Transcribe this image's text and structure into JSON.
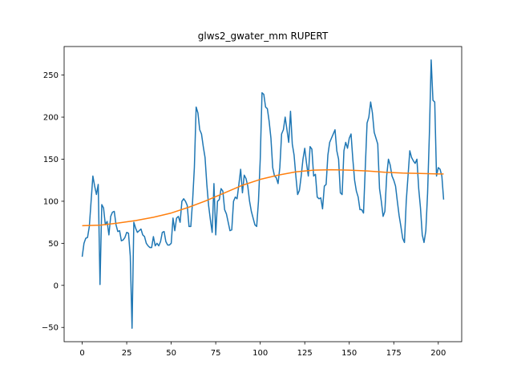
{
  "chart_data": {
    "type": "line",
    "title": "glws2_gwater_mm RUPERT",
    "xlim": [
      -10.15,
      213.15
    ],
    "ylim": [
      -66.95,
      283.95
    ],
    "xticks": [
      0,
      25,
      50,
      75,
      100,
      125,
      150,
      175,
      200
    ],
    "yticks": [
      {
        "value": -50,
        "label": "−50"
      },
      0,
      50,
      100,
      150,
      200,
      250
    ],
    "grid": false,
    "series": [
      {
        "color": "#1f77b4",
        "x": [
          0,
          1,
          2,
          3,
          4,
          5,
          6,
          7,
          8,
          9,
          10,
          11,
          12,
          13,
          14,
          15,
          16,
          17,
          18,
          19,
          20,
          21,
          22,
          23,
          24,
          25,
          26,
          27,
          28,
          29,
          30,
          31,
          32,
          33,
          34,
          35,
          36,
          37,
          38,
          39,
          40,
          41,
          42,
          43,
          44,
          45,
          46,
          47,
          48,
          49,
          50,
          51,
          52,
          53,
          54,
          55,
          56,
          57,
          58,
          59,
          60,
          61,
          62,
          63,
          64,
          65,
          66,
          67,
          68,
          69,
          70,
          71,
          72,
          73,
          74,
          75,
          76,
          77,
          78,
          79,
          80,
          81,
          82,
          83,
          84,
          85,
          86,
          87,
          88,
          89,
          90,
          91,
          92,
          93,
          94,
          95,
          96,
          97,
          98,
          99,
          100,
          101,
          102,
          103,
          104,
          105,
          106,
          107,
          108,
          109,
          110,
          111,
          112,
          113,
          114,
          115,
          116,
          117,
          118,
          119,
          120,
          121,
          122,
          123,
          124,
          125,
          126,
          127,
          128,
          129,
          130,
          131,
          132,
          133,
          134,
          135,
          136,
          137,
          138,
          139,
          140,
          141,
          142,
          143,
          144,
          145,
          146,
          147,
          148,
          149,
          150,
          151,
          152,
          153,
          154,
          155,
          156,
          157,
          158,
          159,
          160,
          161,
          162,
          163,
          164,
          165,
          166,
          167,
          168,
          169,
          170,
          171,
          172,
          173,
          174,
          175,
          176,
          177,
          178,
          179,
          180,
          181,
          182,
          183,
          184,
          185,
          186,
          187,
          188,
          189,
          190,
          191,
          192,
          193,
          194,
          195,
          196,
          197,
          198,
          199,
          200,
          201,
          202,
          203
        ],
        "values": [
          34,
          50,
          56,
          57,
          70,
          100,
          130,
          118,
          108,
          120,
          1,
          96,
          92,
          72,
          76,
          60,
          82,
          87,
          88,
          72,
          64,
          65,
          53,
          54,
          57,
          63,
          62,
          35,
          -51,
          75,
          68,
          63,
          65,
          67,
          60,
          58,
          50,
          47,
          45,
          45,
          58,
          47,
          50,
          47,
          52,
          63,
          64,
          52,
          48,
          48,
          50,
          80,
          65,
          80,
          82,
          75,
          100,
          103,
          100,
          95,
          70,
          70,
          100,
          140,
          212,
          205,
          185,
          180,
          165,
          152,
          120,
          95,
          78,
          63,
          121,
          60,
          100,
          102,
          115,
          112,
          90,
          85,
          75,
          65,
          66,
          100,
          105,
          103,
          120,
          138,
          110,
          131,
          127,
          118,
          100,
          88,
          80,
          72,
          70,
          100,
          150,
          229,
          227,
          212,
          210,
          195,
          175,
          140,
          130,
          128,
          121,
          140,
          180,
          185,
          200,
          185,
          170,
          207,
          168,
          155,
          130,
          108,
          113,
          130,
          150,
          163,
          145,
          130,
          165,
          162,
          130,
          132,
          105,
          103,
          104,
          91,
          118,
          120,
          155,
          170,
          175,
          180,
          185,
          160,
          150,
          110,
          108,
          160,
          170,
          163,
          175,
          180,
          150,
          125,
          112,
          105,
          90,
          90,
          86,
          140,
          193,
          200,
          218,
          205,
          182,
          175,
          168,
          115,
          100,
          82,
          88,
          130,
          150,
          143,
          130,
          125,
          118,
          100,
          83,
          70,
          56,
          51,
          100,
          130,
          160,
          152,
          148,
          145,
          150,
          115,
          92,
          60,
          51,
          65,
          110,
          180,
          268,
          220,
          218,
          130,
          140,
          138,
          130,
          102
        ]
      },
      {
        "color": "#ff7f0e",
        "x": [
          0,
          10,
          20,
          30,
          40,
          50,
          60,
          70,
          80,
          90,
          100,
          110,
          120,
          130,
          140,
          150,
          160,
          170,
          180,
          190,
          200,
          203
        ],
        "values": [
          71,
          71.5,
          74,
          77,
          81,
          86,
          93,
          101,
          110,
          119,
          126,
          131,
          135,
          137,
          137.5,
          137,
          136,
          134.5,
          133.5,
          133,
          132.5,
          132.5
        ]
      }
    ]
  }
}
